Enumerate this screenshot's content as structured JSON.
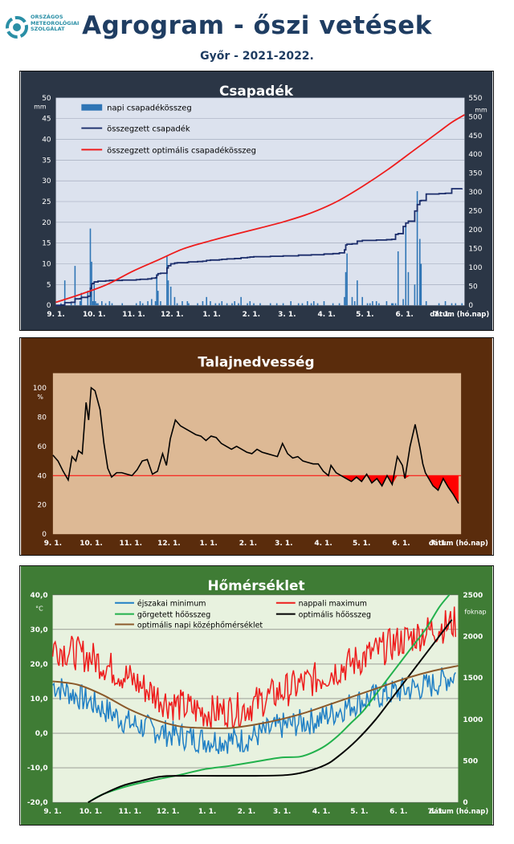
{
  "header": {
    "org_lines": [
      "ORSZÁGOS",
      "METEOROLÓGIAI",
      "SZOLGÁLAT"
    ],
    "title": "Agrogram - őszi vetések",
    "subtitle": "Győr - 2021-2022."
  },
  "colors": {
    "precip_panel": "#2b3646",
    "soil_panel": "#5a2c0c",
    "temp_panel": "#3f7c35"
  },
  "chart_data": [
    {
      "type": "bar",
      "title": "Csapadék",
      "y_unit": "mm",
      "y2_unit": "mm",
      "ylim": [
        0,
        50
      ],
      "y2lim": [
        0,
        550
      ],
      "yticks": [
        "0",
        "5",
        "10",
        "15",
        "20",
        "25",
        "30",
        "35",
        "40",
        "45",
        "50"
      ],
      "y2ticks": [
        "0",
        "50",
        "100",
        "150",
        "200",
        "250",
        "300",
        "350",
        "400",
        "450",
        "500",
        "550"
      ],
      "xticks": [
        "9. 1.",
        "10. 1.",
        "11. 1.",
        "12. 1.",
        "1. 1.",
        "2. 1.",
        "3. 1.",
        "4. 1.",
        "5. 1.",
        "6. 1.",
        "7. 1."
      ],
      "xlabel": "dátum (hó.nap)",
      "grid": true,
      "legend_position": "top-left",
      "series": [
        {
          "name": "napi csapadékösszeg",
          "kind": "bar",
          "color": "#2f75b5",
          "x": [
            4,
            7,
            12,
            15,
            19,
            20,
            25,
            27,
            28,
            29,
            30,
            31,
            32,
            33,
            36,
            39,
            42,
            44,
            52,
            63,
            66,
            68,
            72,
            75,
            78,
            79,
            80,
            82,
            87,
            88,
            90,
            93,
            95,
            99,
            103,
            104,
            111,
            115,
            118,
            121,
            125,
            128,
            130,
            134,
            138,
            140,
            143,
            145,
            150,
            152,
            155,
            160,
            168,
            173,
            178,
            184,
            190,
            193,
            197,
            200,
            202,
            205,
            210,
            217,
            222,
            226,
            227,
            228,
            232,
            234,
            236,
            240,
            244,
            246,
            248,
            251,
            253,
            259,
            263,
            264,
            266,
            268,
            272,
            274,
            276,
            281,
            283,
            285,
            286,
            290,
            300,
            305,
            310,
            313,
            318
          ],
          "y": [
            0.5,
            6,
            0.5,
            9.5,
            1,
            3,
            3.5,
            18.5,
            10.5,
            1,
            5,
            1,
            0.5,
            0.5,
            1,
            0.5,
            1,
            0.5,
            0.5,
            0.5,
            1,
            0.5,
            1,
            1.5,
            1,
            7.5,
            3.5,
            1,
            12,
            6,
            4.5,
            2,
            0.5,
            1,
            1,
            0.5,
            0.5,
            1,
            2,
            1,
            0.5,
            0.5,
            1,
            0.5,
            0.5,
            1,
            0.5,
            2,
            0.5,
            1,
            0.5,
            0.5,
            0.5,
            0.5,
            0.5,
            1,
            0.5,
            0.5,
            1,
            0.5,
            1,
            0.5,
            1,
            0.5,
            0.5,
            2,
            8,
            12.5,
            2,
            1,
            6,
            2,
            0.5,
            0.5,
            1,
            1,
            0.5,
            1,
            0.5,
            0.5,
            0.5,
            13,
            1.5,
            19,
            8,
            5,
            27.5,
            16,
            10,
            1,
            0.5,
            1,
            0.5,
            0.5,
            0.5
          ]
        },
        {
          "name": "összegzett csapadék",
          "kind": "line",
          "axis": "right",
          "color": "#1b2d6b",
          "x": [
            0,
            4,
            7,
            12,
            15,
            19,
            20,
            25,
            27,
            28,
            29,
            30,
            33,
            39,
            42,
            44,
            52,
            63,
            66,
            68,
            72,
            75,
            78,
            79,
            80,
            82,
            87,
            88,
            90,
            93,
            95,
            103,
            104,
            111,
            115,
            118,
            121,
            128,
            130,
            134,
            140,
            145,
            150,
            152,
            155,
            168,
            178,
            190,
            200,
            210,
            217,
            222,
            226,
            227,
            228,
            232,
            236,
            240,
            251,
            259,
            263,
            266,
            268,
            272,
            274,
            276,
            281,
            283,
            285,
            286,
            290,
            300,
            305,
            310,
            318
          ],
          "y": [
            0,
            1,
            7,
            8,
            17,
            18,
            21,
            24,
            45,
            57,
            58,
            62,
            64,
            65,
            66,
            66,
            67,
            68,
            69,
            69,
            70,
            72,
            73,
            80,
            84,
            85,
            99,
            105,
            110,
            112,
            113,
            114,
            115,
            116,
            117,
            119,
            120,
            121,
            122,
            123,
            124,
            126,
            127,
            128,
            129,
            130,
            131,
            133,
            134,
            136,
            137,
            139,
            147,
            160,
            162,
            163,
            170,
            172,
            173,
            174,
            175,
            188,
            190,
            209,
            218,
            223,
            250,
            267,
            277,
            278,
            295,
            296,
            297,
            309,
            310
          ]
        },
        {
          "name": "összegzett optimális  csapadékösszeg",
          "kind": "line",
          "axis": "right",
          "color": "#ee1c1c",
          "x": [
            0,
            20,
            40,
            60,
            80,
            100,
            120,
            140,
            160,
            180,
            200,
            220,
            240,
            260,
            280,
            300,
            310,
            320
          ],
          "y": [
            8,
            30,
            55,
            90,
            120,
            150,
            170,
            188,
            205,
            223,
            245,
            275,
            315,
            360,
            410,
            460,
            485,
            505
          ]
        }
      ]
    },
    {
      "type": "line",
      "title": "Talajnedvesség",
      "y_unit": "%",
      "ylim": [
        0,
        110
      ],
      "yticks": [
        "0",
        "20",
        "40",
        "60",
        "80",
        "100"
      ],
      "xticks": [
        "9. 1.",
        "10. 1.",
        "11. 1.",
        "12. 1.",
        "1. 1.",
        "2. 1.",
        "3. 1.",
        "4. 1.",
        "5. 1.",
        "6. 1.",
        "7. 1."
      ],
      "xlabel": "dátum (hó.nap)",
      "threshold": 40,
      "threshold_color": "#ff0000",
      "deficit_fill": "#ff0000",
      "series": [
        {
          "name": "talajnedvesség",
          "color": "#000000",
          "x": [
            0,
            4,
            8,
            12,
            15,
            18,
            20,
            23,
            26,
            28,
            30,
            33,
            37,
            40,
            43,
            46,
            50,
            54,
            58,
            62,
            66,
            70,
            74,
            78,
            82,
            86,
            89,
            92,
            96,
            100,
            104,
            108,
            112,
            116,
            120,
            124,
            128,
            132,
            136,
            140,
            144,
            148,
            152,
            156,
            160,
            164,
            168,
            172,
            176,
            180,
            184,
            188,
            192,
            196,
            200,
            204,
            208,
            212,
            216,
            218,
            222,
            226,
            230,
            234,
            238,
            242,
            246,
            250,
            254,
            258,
            262,
            266,
            270,
            274,
            276,
            280,
            284,
            288,
            290,
            292,
            294,
            298,
            302,
            306,
            310,
            314,
            318
          ],
          "y": [
            54,
            50,
            43,
            37,
            53,
            50,
            57,
            55,
            90,
            78,
            100,
            98,
            85,
            62,
            45,
            39,
            42,
            42,
            41,
            40,
            44,
            50,
            51,
            41,
            43,
            55,
            47,
            65,
            78,
            74,
            72,
            70,
            68,
            67,
            64,
            67,
            66,
            62,
            60,
            58,
            60,
            58,
            56,
            55,
            58,
            56,
            55,
            54,
            53,
            62,
            55,
            52,
            53,
            50,
            49,
            48,
            48,
            43,
            40,
            47,
            42,
            40,
            38,
            36,
            39,
            36,
            41,
            35,
            38,
            33,
            40,
            34,
            53,
            47,
            38,
            60,
            75,
            58,
            48,
            42,
            39,
            33,
            30,
            38,
            32,
            27,
            21
          ]
        }
      ]
    },
    {
      "type": "line",
      "title": "Hőmérséklet",
      "y_unit": "°C",
      "y2_unit": "foknap",
      "ylim": [
        -20,
        40
      ],
      "y2lim": [
        0,
        2500
      ],
      "yticks": [
        "-20,0",
        "-10,0",
        "0,0",
        "10,0",
        "20,0",
        "30,0",
        "40,0"
      ],
      "y2ticks": [
        "0",
        "500",
        "1000",
        "1500",
        "2000",
        "2500"
      ],
      "xticks": [
        "9. 1.",
        "10. 1.",
        "11. 1.",
        "12. 1.",
        "1. 1.",
        "2. 1.",
        "3. 1.",
        "4. 1.",
        "5. 1.",
        "6. 1.",
        "7. 1."
      ],
      "xlabel": "dátum (hó.nap)",
      "grid": true,
      "legend_position": "top",
      "series": [
        {
          "name": "éjszakai minimum",
          "color": "#1f7fc5",
          "axis": "left",
          "pattern": "noisy",
          "base": [
            [
              0,
              14
            ],
            [
              30,
              9
            ],
            [
              60,
              3
            ],
            [
              90,
              0
            ],
            [
              120,
              -2
            ],
            [
              150,
              -2
            ],
            [
              180,
              2
            ],
            [
              210,
              4
            ],
            [
              240,
              9
            ],
            [
              270,
              12
            ],
            [
              300,
              14
            ],
            [
              318,
              17
            ]
          ],
          "amp": 4
        },
        {
          "name": "nappali maximum",
          "color": "#ee1c1c",
          "axis": "left",
          "pattern": "noisy",
          "base": [
            [
              0,
              25
            ],
            [
              30,
              22
            ],
            [
              60,
              16
            ],
            [
              90,
              9
            ],
            [
              120,
              6
            ],
            [
              150,
              7
            ],
            [
              180,
              12
            ],
            [
              210,
              16
            ],
            [
              240,
              21
            ],
            [
              270,
              26
            ],
            [
              300,
              30
            ],
            [
              318,
              32
            ]
          ],
          "amp": 5
        },
        {
          "name": "görgetett hőösszeg",
          "color": "#22b14c",
          "axis": "right",
          "pattern": "smooth",
          "x": [
            28,
            40,
            60,
            80,
            100,
            120,
            140,
            160,
            180,
            195,
            205,
            215,
            225,
            235,
            245,
            255,
            265,
            275,
            285,
            295,
            305,
            313
          ],
          "y": [
            0,
            100,
            200,
            270,
            330,
            400,
            440,
            490,
            540,
            550,
            600,
            680,
            800,
            950,
            1100,
            1300,
            1500,
            1700,
            1900,
            2100,
            2350,
            2500
          ]
        },
        {
          "name": "optimális hőösszeg",
          "color": "#000000",
          "axis": "right",
          "pattern": "smooth",
          "x": [
            28,
            40,
            55,
            70,
            85,
            100,
            130,
            160,
            185,
            200,
            215,
            225,
            240,
            255,
            270,
            285,
            300,
            315
          ],
          "y": [
            0,
            100,
            200,
            260,
            310,
            320,
            320,
            320,
            330,
            370,
            450,
            550,
            750,
            1000,
            1300,
            1600,
            1900,
            2200
          ]
        },
        {
          "name": "optimális napi középhőmérséklet",
          "color": "#8b5a2b",
          "axis": "left",
          "pattern": "smooth",
          "x": [
            0,
            20,
            40,
            60,
            80,
            100,
            120,
            140,
            160,
            180,
            200,
            220,
            240,
            260,
            280,
            300,
            320
          ],
          "y": [
            15,
            14,
            11,
            7,
            4,
            2,
            1.5,
            1.5,
            2.5,
            4,
            6,
            8.5,
            11,
            13.5,
            16,
            18,
            19.5
          ]
        }
      ]
    }
  ]
}
